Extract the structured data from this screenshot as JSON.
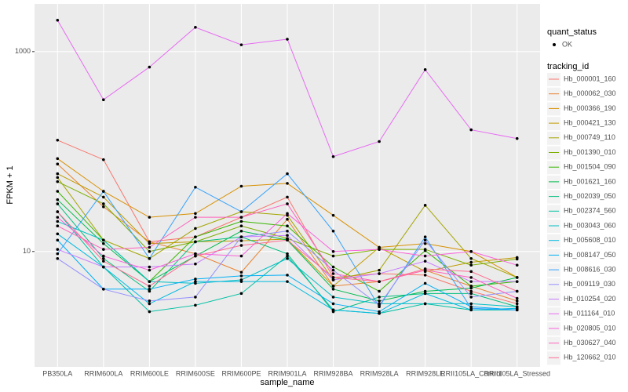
{
  "chart_data": {
    "type": "line",
    "log_y": true,
    "grid": true,
    "x_label": "sample_name",
    "y_label": "FPKM + 1",
    "categories": [
      "PB350LA",
      "RRIM600LA",
      "RRIM600LE",
      "RRIM600SE",
      "RRIM600PE",
      "RRIM901LA",
      "RRIM928BA",
      "RRIM928LA",
      "RRIM928LE",
      "RRII105LA_Control",
      "RRII105LA_Stressed"
    ],
    "ylim": [
      0.7,
      3000
    ],
    "yticks": [
      10,
      1000
    ],
    "shape_legend": {
      "title": "quant_status",
      "labels": [
        "OK"
      ]
    },
    "color_legend_title": "tracking_id",
    "series": [
      {
        "name": "Hb_000001_160",
        "color": "#F8766D",
        "values": [
          130,
          83,
          12.5,
          14,
          22,
          35,
          5.5,
          6.0,
          5.8,
          4.0,
          3.0
        ]
      },
      {
        "name": "Hb_000062_030",
        "color": "#EA8331",
        "values": [
          75,
          28,
          12.5,
          9.5,
          6.2,
          21,
          4.5,
          5.0,
          6.5,
          4.5,
          3.2
        ]
      },
      {
        "name": "Hb_000366_190",
        "color": "#D89000",
        "values": [
          85,
          40,
          22,
          24,
          45,
          48,
          23,
          11,
          12,
          10,
          5.5
        ]
      },
      {
        "name": "Hb_000421_130",
        "color": "#C09B00",
        "values": [
          60,
          35,
          12,
          12.5,
          12.8,
          13.3,
          4.5,
          11,
          6.3,
          7.8,
          8.7
        ]
      },
      {
        "name": "Hb_000749_110",
        "color": "#A3A500",
        "values": [
          55,
          13,
          8.5,
          17,
          25,
          23,
          5.2,
          6.5,
          29,
          8.5,
          5.5
        ]
      },
      {
        "name": "Hb_001390_010",
        "color": "#7CAE00",
        "values": [
          50,
          30,
          10,
          12.5,
          18,
          13.5,
          9.0,
          10.5,
          10.5,
          7.3,
          8.4
        ]
      },
      {
        "name": "Hb_001504_090",
        "color": "#39B600",
        "values": [
          40,
          13,
          5.0,
          14,
          20,
          18,
          7.0,
          4.0,
          10.2,
          4.5,
          5.0
        ]
      },
      {
        "name": "Hb_001621_160",
        "color": "#00BB4E",
        "values": [
          33,
          12,
          5.0,
          9.0,
          16,
          13,
          4.2,
          3.2,
          4.0,
          4.3,
          5.5
        ]
      },
      {
        "name": "Hb_002039_050",
        "color": "#00BF7D",
        "values": [
          30,
          8.5,
          4.0,
          12.5,
          14,
          9.5,
          2.5,
          3.5,
          3.8,
          3.8,
          2.8
        ]
      },
      {
        "name": "Hb_002374_560",
        "color": "#00C1A3",
        "values": [
          25,
          7.0,
          2.5,
          2.9,
          3.8,
          9.0,
          2.6,
          2.4,
          3.0,
          2.6,
          2.6
        ]
      },
      {
        "name": "Hb_003043_060",
        "color": "#00BFC4",
        "values": [
          20,
          13,
          5.0,
          4.8,
          5.2,
          8.5,
          3.5,
          3.0,
          3.0,
          3.0,
          2.8
        ]
      },
      {
        "name": "Hb_005608_010",
        "color": "#00BAE0",
        "values": [
          15,
          7.0,
          3.0,
          5.0,
          5.0,
          5.0,
          2.6,
          2.4,
          3.8,
          2.6,
          2.7
        ]
      },
      {
        "name": "Hb_008147_050",
        "color": "#00B0F6",
        "values": [
          13,
          4.2,
          4.2,
          5.3,
          5.7,
          5.8,
          3.0,
          2.5,
          4.8,
          2.8,
          2.6
        ]
      },
      {
        "name": "Hb_008616_030",
        "color": "#35A2FF",
        "values": [
          9.5,
          40,
          8.5,
          44,
          25,
          60,
          16,
          2.8,
          14,
          2.7,
          2.6
        ]
      },
      {
        "name": "Hb_009119_030",
        "color": "#9590FF",
        "values": [
          8.5,
          4.2,
          3.2,
          3.5,
          14,
          16,
          6.5,
          2.9,
          13,
          3.5,
          4.0
        ]
      },
      {
        "name": "Hb_010254_020",
        "color": "#C77CFF",
        "values": [
          10.5,
          7.0,
          7.0,
          7.5,
          14,
          14.5,
          5.2,
          6.0,
          8.0,
          5.0,
          5.0
        ]
      },
      {
        "name": "Hb_011164_010",
        "color": "#E76BF3",
        "values": [
          2060,
          330,
          700,
          1750,
          1170,
          1330,
          89,
          126,
          660,
          165,
          135
        ]
      },
      {
        "name": "Hb_020805_010",
        "color": "#FA62DB",
        "values": [
          22,
          9.0,
          6.5,
          9.5,
          9.0,
          24,
          10,
          10.5,
          9.0,
          10,
          7.3
        ]
      },
      {
        "name": "Hb_030627_040",
        "color": "#FF62BC",
        "values": [
          18,
          10.5,
          11,
          22,
          22,
          30,
          6.0,
          5.0,
          6.5,
          5.5,
          3.4
        ]
      },
      {
        "name": "Hb_120662_010",
        "color": "#FF6C91",
        "values": [
          25,
          8.0,
          4.5,
          9.0,
          11.5,
          13,
          5.5,
          5.0,
          6.7,
          6.3,
          4.0
        ]
      }
    ]
  }
}
